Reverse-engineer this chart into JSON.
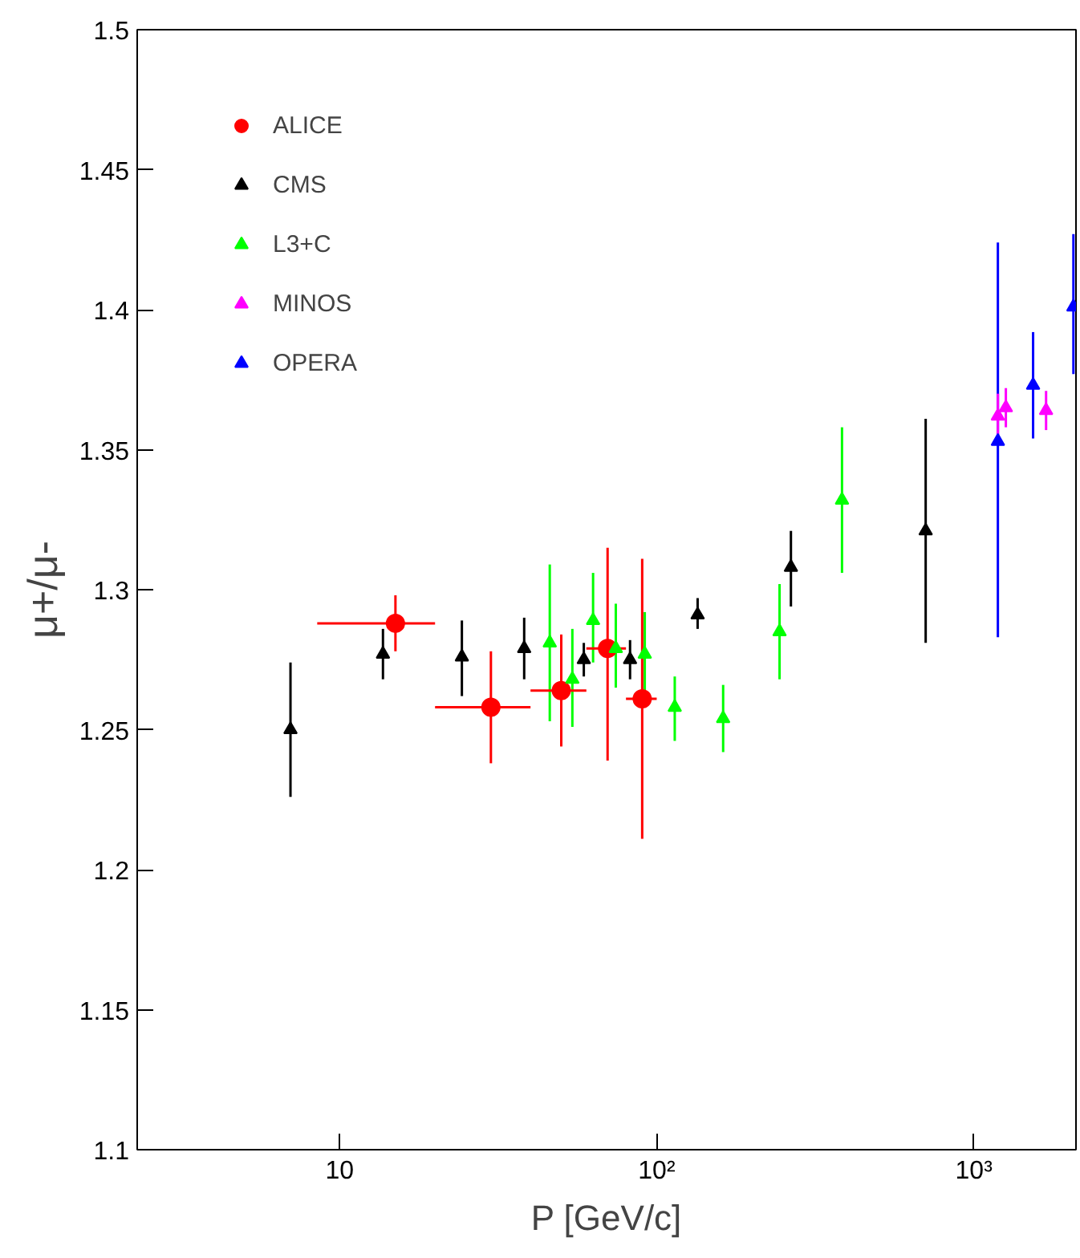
{
  "chart_data": {
    "type": "scatter",
    "xlabel": "P [GeV/c]",
    "ylabel": "μ+/μ-",
    "log": "x",
    "grid": false,
    "legend": "top left",
    "xlim": [
      2.3,
      2100
    ],
    "xticks": [
      10,
      {
        "value": 100,
        "label": "10²"
      },
      {
        "value": 1000,
        "label": "10³"
      }
    ],
    "ylim": [
      1.1,
      1.5
    ],
    "yticks": [
      1.1,
      1.15,
      1.2,
      1.25,
      1.3,
      1.35,
      1.4,
      1.45,
      1.5
    ],
    "series": [
      {
        "name": "ALICE",
        "color": "#ff0000",
        "marker": "circle",
        "x": [
          15,
          30,
          50,
          70,
          90
        ],
        "values": [
          1.288,
          1.258,
          1.264,
          1.279,
          1.261
        ],
        "errors": [
          [
            1.278,
            1.298
          ],
          [
            1.238,
            1.278
          ],
          [
            1.244,
            1.284
          ],
          [
            1.239,
            1.315
          ],
          [
            1.211,
            1.311
          ]
        ],
        "xerrors": [
          [
            8.5,
            20
          ],
          [
            20,
            40
          ],
          [
            40,
            60
          ],
          [
            60,
            80
          ],
          [
            80,
            100
          ]
        ]
      },
      {
        "name": "CMS",
        "color": "#000000",
        "marker": "triangle",
        "x": [
          7.0,
          13.7,
          24.3,
          38.2,
          58.9,
          82.4,
          134.6,
          265,
          705
        ],
        "values": [
          1.25,
          1.277,
          1.276,
          1.279,
          1.275,
          1.275,
          1.291,
          1.308,
          1.321
        ],
        "errors": [
          [
            1.226,
            1.274
          ],
          [
            1.268,
            1.286
          ],
          [
            1.262,
            1.289
          ],
          [
            1.268,
            1.29
          ],
          [
            1.269,
            1.281
          ],
          [
            1.268,
            1.282
          ],
          [
            1.286,
            1.297
          ],
          [
            1.294,
            1.321
          ],
          [
            1.281,
            1.361
          ]
        ]
      },
      {
        "name": "L3+C",
        "color": "#00ff00",
        "marker": "triangle",
        "x": [
          46,
          54.2,
          63,
          74.3,
          91.7,
          114,
          162,
          244,
          384
        ],
        "values": [
          1.281,
          1.268,
          1.289,
          1.279,
          1.277,
          1.258,
          1.254,
          1.285,
          1.332
        ],
        "errors": [
          [
            1.253,
            1.309
          ],
          [
            1.251,
            1.286
          ],
          [
            1.274,
            1.306
          ],
          [
            1.265,
            1.295
          ],
          [
            1.264,
            1.292
          ],
          [
            1.246,
            1.269
          ],
          [
            1.242,
            1.266
          ],
          [
            1.268,
            1.302
          ],
          [
            1.306,
            1.358
          ]
        ]
      },
      {
        "name": "MINOS",
        "color": "#ff00ff",
        "marker": "triangle",
        "x": [
          1191,
          1262,
          1690
        ],
        "values": [
          1.362,
          1.365,
          1.364
        ],
        "errors": [
          [
            1.355,
            1.37
          ],
          [
            1.358,
            1.372
          ],
          [
            1.357,
            1.371
          ]
        ]
      },
      {
        "name": "OPERA",
        "color": "#0000ff",
        "marker": "triangle",
        "x": [
          1191,
          1538,
          2061
        ],
        "values": [
          1.353,
          1.373,
          1.401
        ],
        "errors": [
          [
            1.283,
            1.424
          ],
          [
            1.354,
            1.392
          ],
          [
            1.377,
            1.427
          ]
        ]
      }
    ]
  }
}
